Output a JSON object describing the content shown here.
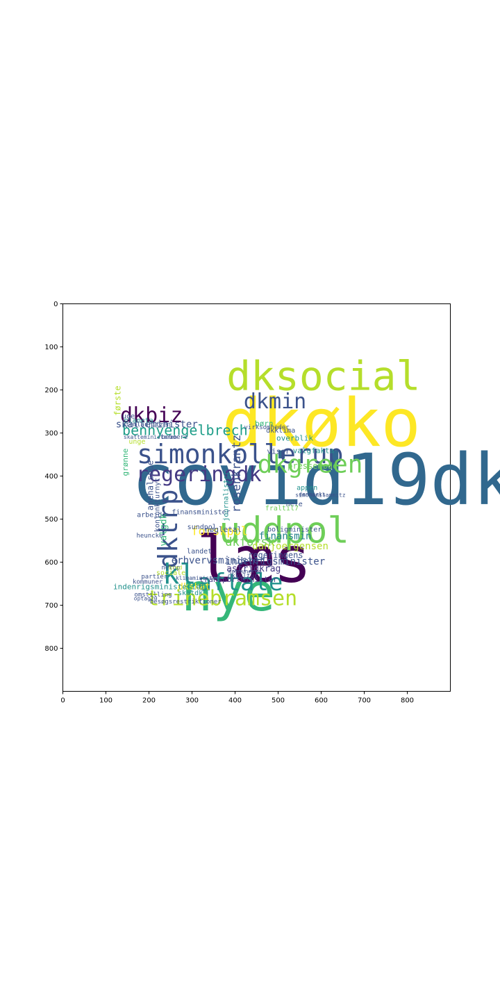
{
  "axes": {
    "x_ticks": [
      0,
      100,
      200,
      300,
      400,
      500,
      600,
      700,
      800
    ],
    "y_ticks": [
      0,
      100,
      200,
      300,
      400,
      500,
      600,
      700,
      800
    ],
    "xlim": [
      0,
      900
    ],
    "ylim": [
      0,
      900
    ],
    "y_inverted": true
  },
  "palette": [
    "#440154",
    "#3b528b",
    "#21918c",
    "#5ec962",
    "#fde725",
    "#31688e",
    "#35b779",
    "#b5de2b",
    "#6ece58",
    "#482878",
    "#26828e",
    "#1f9e89",
    "#90d743",
    "#443983"
  ],
  "words": [
    {
      "text": "covid19dk",
      "x": 160,
      "y": 465,
      "size": 102,
      "color": "#31688e"
    },
    {
      "text": "dkøko",
      "x": 370,
      "y": 330,
      "size": 95,
      "color": "#fde725"
    },
    {
      "text": "læs",
      "x": 310,
      "y": 645,
      "size": 92,
      "color": "#440154"
    },
    {
      "text": "nye",
      "x": 275,
      "y": 712,
      "size": 75,
      "color": "#35b779"
    },
    {
      "text": "dksocial",
      "x": 380,
      "y": 200,
      "size": 58,
      "color": "#b5de2b"
    },
    {
      "text": "uddpol",
      "x": 362,
      "y": 555,
      "size": 52,
      "color": "#6ece58"
    },
    {
      "text": "simonkollerup",
      "x": 172,
      "y": 370,
      "size": 38,
      "color": "#3b528b"
    },
    {
      "text": "dkgreen",
      "x": 452,
      "y": 392,
      "size": 36,
      "color": "#6ece58"
    },
    {
      "text": "dktrp",
      "x": 265,
      "y": 615,
      "size": 38,
      "color": "#3b528b",
      "rotate": true
    },
    {
      "text": "kl",
      "x": 232,
      "y": 650,
      "size": 40,
      "color": "#21918c"
    },
    {
      "text": "aftale",
      "x": 313,
      "y": 665,
      "size": 34,
      "color": "#21918c"
    },
    {
      "text": "trinebramsen",
      "x": 195,
      "y": 700,
      "size": 30,
      "color": "#b5de2b"
    },
    {
      "text": "regeringdk",
      "x": 170,
      "y": 412,
      "size": 30,
      "color": "#443983"
    },
    {
      "text": "dkbiz",
      "x": 133,
      "y": 275,
      "size": 30,
      "color": "#440154"
    },
    {
      "text": "dkmin",
      "x": 420,
      "y": 243,
      "size": 30,
      "color": "#3b528b"
    },
    {
      "text": "bennyengelbrech",
      "x": 138,
      "y": 305,
      "size": 20,
      "color": "#1f9e89"
    },
    {
      "text": "rosenkrantz",
      "x": 412,
      "y": 485,
      "size": 17,
      "color": "#3b528b",
      "rotate": true
    },
    {
      "text": "skatteminister",
      "x": 123,
      "y": 287,
      "size": 14,
      "color": "#3b528b"
    },
    {
      "text": "forskpol",
      "x": 298,
      "y": 537,
      "size": 17,
      "color": "#fde725"
    },
    {
      "text": "dkforsk",
      "x": 377,
      "y": 562,
      "size": 17,
      "color": "#6ece58"
    },
    {
      "text": "danjoergensen",
      "x": 440,
      "y": 570,
      "size": 14,
      "color": "#b5de2b"
    },
    {
      "text": "finansmin",
      "x": 455,
      "y": 547,
      "size": 14,
      "color": "#26828e"
    },
    {
      "text": "erhvervsminister",
      "x": 252,
      "y": 603,
      "size": 14,
      "color": "#3b528b"
    },
    {
      "text": "indenrigsminister",
      "x": 378,
      "y": 606,
      "size": 14,
      "color": "#3b528b"
    },
    {
      "text": "regeringens",
      "x": 430,
      "y": 590,
      "size": 12,
      "color": "#3b528b"
    },
    {
      "text": "astridkrag",
      "x": 380,
      "y": 622,
      "size": 13,
      "color": "#443983"
    },
    {
      "text": "dkskat",
      "x": 267,
      "y": 664,
      "size": 13,
      "color": "#fde725"
    },
    {
      "text": "skatdk",
      "x": 267,
      "y": 677,
      "size": 10,
      "color": "#21918c"
    },
    {
      "text": "transportminister",
      "x": 317,
      "y": 646,
      "size": 11,
      "color": "#443983"
    },
    {
      "text": "indenrigsministeriet",
      "x": 117,
      "y": 663,
      "size": 11,
      "color": "#21918c"
    },
    {
      "text": "besøgsrestriktioner",
      "x": 202,
      "y": 696,
      "size": 9,
      "color": "#3b528b"
    },
    {
      "text": "pressemøde",
      "x": 522,
      "y": 383,
      "size": 12,
      "color": "#6ece58"
    },
    {
      "text": "valgfakta",
      "x": 534,
      "y": 347,
      "size": 11,
      "color": "#21918c"
    },
    {
      "text": "viser",
      "x": 474,
      "y": 348,
      "size": 11,
      "color": "#3b528b"
    },
    {
      "text": "overblik",
      "x": 496,
      "y": 318,
      "size": 11,
      "color": "#21918c"
    },
    {
      "text": "dkklima",
      "x": 472,
      "y": 299,
      "size": 10,
      "color": "#3b528b"
    },
    {
      "text": "børn",
      "x": 446,
      "y": 284,
      "size": 11,
      "color": "#35b779"
    },
    {
      "text": "virksomheder",
      "x": 421,
      "y": 291,
      "size": 9,
      "color": "#3b528b"
    },
    {
      "text": "første",
      "x": 134,
      "y": 260,
      "size": 12,
      "color": "#b5de2b",
      "rotate": true
    },
    {
      "text": "uge",
      "x": 138,
      "y": 266,
      "size": 10,
      "color": "#3b528b"
    },
    {
      "text": "planeta",
      "x": 142,
      "y": 276,
      "size": 10,
      "color": "#21918c"
    },
    {
      "text": "stemlauritzen",
      "x": 137,
      "y": 285,
      "size": 9,
      "color": "#3b528b"
    },
    {
      "text": "skatteministeren",
      "x": 141,
      "y": 314,
      "size": 8,
      "color": "#3b528b"
    },
    {
      "text": "unge",
      "x": 153,
      "y": 325,
      "size": 10,
      "color": "#b5de2b"
    },
    {
      "text": "beboere",
      "x": 229,
      "y": 314,
      "size": 9,
      "color": "#3b528b"
    },
    {
      "text": "grønne",
      "x": 151,
      "y": 400,
      "size": 11,
      "color": "#35b779",
      "rotate": true
    },
    {
      "text": "anehalsboe",
      "x": 210,
      "y": 480,
      "size": 12,
      "color": "#3b528b",
      "rotate": true
    },
    {
      "text": "arbejde",
      "x": 172,
      "y": 495,
      "size": 10,
      "color": "#3b528b"
    },
    {
      "text": "konjunkturnyt",
      "x": 224,
      "y": 530,
      "size": 10,
      "color": "#3b528b",
      "rotate": true
    },
    {
      "text": "valgdk",
      "x": 240,
      "y": 563,
      "size": 13,
      "color": "#35b779",
      "rotate": true
    },
    {
      "text": "finansminister",
      "x": 253,
      "y": 489,
      "size": 10,
      "color": "#3b528b"
    },
    {
      "text": "sundpol",
      "x": 289,
      "y": 523,
      "size": 10,
      "color": "#3b528b"
    },
    {
      "text": "nøgletal",
      "x": 330,
      "y": 530,
      "size": 11,
      "color": "#3b528b"
    },
    {
      "text": "landet",
      "x": 288,
      "y": 580,
      "size": 10,
      "color": "#3b528b"
    },
    {
      "text": "boligminister",
      "x": 475,
      "y": 529,
      "size": 10,
      "color": "#3b528b"
    },
    {
      "text": "journalister",
      "x": 384,
      "y": 505,
      "size": 10,
      "color": "#21918c",
      "rotate": true
    },
    {
      "text": "danmarks",
      "x": 548,
      "y": 447,
      "size": 8,
      "color": "#3b528b"
    },
    {
      "text": "appen",
      "x": 543,
      "y": 432,
      "size": 10,
      "color": "#21918c"
    },
    {
      "text": "klimaminister",
      "x": 262,
      "y": 641,
      "size": 8,
      "color": "#3b528b"
    },
    {
      "text": "heuncke",
      "x": 171,
      "y": 543,
      "size": 9,
      "color": "#3b528b"
    },
    {
      "text": "hele",
      "x": 518,
      "y": 470,
      "size": 10,
      "color": "#3b528b"
    },
    {
      "text": "fraltil7",
      "x": 470,
      "y": 480,
      "size": 10,
      "color": "#6ece58"
    },
    {
      "text": "simonemilammitz",
      "x": 540,
      "y": 448,
      "size": 8,
      "color": "#3b528b"
    },
    {
      "text": "dkkultur",
      "x": 383,
      "y": 636,
      "size": 9,
      "color": "#3b528b"
    },
    {
      "text": "kommunerne",
      "x": 384,
      "y": 626,
      "size": 8,
      "color": "#3b528b"
    },
    {
      "text": "netop",
      "x": 229,
      "y": 617,
      "size": 9,
      "color": "#3b528b"
    },
    {
      "text": "partier",
      "x": 182,
      "y": 638,
      "size": 9,
      "color": "#3b528b"
    },
    {
      "text": "kommuner",
      "x": 162,
      "y": 650,
      "size": 9,
      "color": "#3b528b"
    },
    {
      "text": "omstilling",
      "x": 166,
      "y": 680,
      "size": 9,
      "color": "#3b528b"
    },
    {
      "text": "optag20",
      "x": 165,
      "y": 689,
      "size": 8,
      "color": "#3b528b"
    },
    {
      "text": "sociale",
      "x": 217,
      "y": 630,
      "size": 10,
      "color": "#b5de2b"
    },
    {
      "text": "bred",
      "x": 246,
      "y": 617,
      "size": 8,
      "color": "#b5de2b"
    }
  ]
}
